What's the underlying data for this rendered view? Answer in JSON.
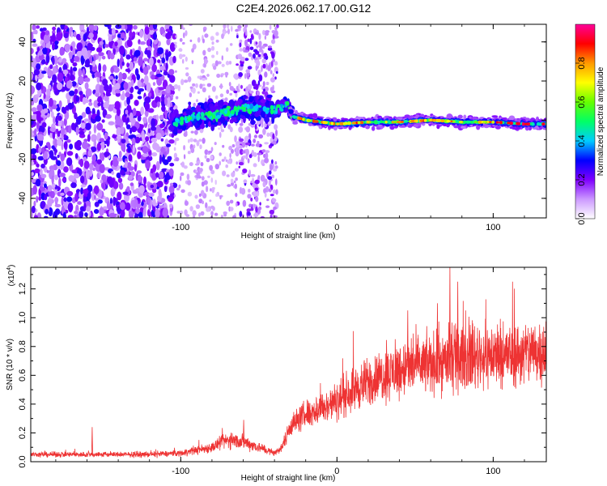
{
  "title": "C2E4.2026.062.17.00.G12",
  "chart_data": [
    {
      "type": "heatmap",
      "xlabel": "Height of straight line (km)",
      "ylabel": "Frequency (Hz)",
      "xlim": [
        -196,
        134
      ],
      "ylim": [
        -50,
        49
      ],
      "x_ticks": [
        -100,
        0,
        100
      ],
      "y_ticks": [
        -40,
        -20,
        0,
        20,
        40
      ],
      "colorbar": {
        "label": "Normalized spectral amplitude",
        "range": [
          0.0,
          1.0
        ],
        "ticks": [
          0.0,
          0.2,
          0.4,
          0.6,
          0.8
        ],
        "tick_labels": [
          "0.0",
          "0.2",
          "0.4",
          "0.6",
          "0.8"
        ],
        "colors": [
          "#ffffff",
          "#cc99ff",
          "#7f00ff",
          "#0000ff",
          "#00ccff",
          "#00ff66",
          "#66ff00",
          "#ffff00",
          "#ff9900",
          "#ff0000",
          "#ff0099"
        ]
      },
      "ridge": {
        "description_points_x": [
          -105,
          -90,
          -75,
          -60,
          -50,
          -40,
          -32,
          -28,
          -20,
          0,
          20,
          40,
          60,
          80,
          100,
          120,
          134
        ],
        "description_points_y": [
          -2,
          2,
          3,
          6,
          6,
          5,
          8,
          2,
          0,
          -2,
          -1,
          -1,
          0,
          -1,
          -1,
          -2,
          -2
        ]
      }
    },
    {
      "type": "line",
      "xlabel": "Height of straight line (km)",
      "ylabel": "SNR (10 * v/v)",
      "y_scale_label": "(x10",
      "y_scale_exponent": "4",
      "xlim": [
        -196,
        134
      ],
      "ylim": [
        0.0,
        1.35
      ],
      "x_ticks": [
        -100,
        0,
        100
      ],
      "y_ticks": [
        0.0,
        0.2,
        0.4,
        0.6,
        0.8,
        1.0,
        1.2
      ],
      "y_tick_labels": [
        "0.0",
        "0.2",
        "0.4",
        "0.6",
        "0.8",
        "1.0",
        "1.2"
      ],
      "color": "#ee3333",
      "trend_x": [
        -196,
        -150,
        -120,
        -100,
        -80,
        -70,
        -60,
        -50,
        -40,
        -35,
        -30,
        -20,
        -10,
        0,
        10,
        20,
        30,
        40,
        50,
        60,
        70,
        80,
        90,
        100,
        110,
        120,
        134
      ],
      "trend_y": [
        0.05,
        0.05,
        0.05,
        0.06,
        0.1,
        0.15,
        0.14,
        0.1,
        0.06,
        0.1,
        0.25,
        0.33,
        0.37,
        0.42,
        0.5,
        0.55,
        0.6,
        0.64,
        0.67,
        0.68,
        0.7,
        0.72,
        0.73,
        0.74,
        0.74,
        0.75,
        0.78
      ],
      "spikes": [
        [
          -157,
          0.24
        ],
        [
          -60,
          0.29
        ],
        [
          72,
          1.35
        ],
        [
          77,
          1.25
        ],
        [
          64,
          1.1
        ],
        [
          45,
          1.05
        ],
        [
          95,
          1.0
        ],
        [
          85,
          0.95
        ]
      ]
    }
  ]
}
